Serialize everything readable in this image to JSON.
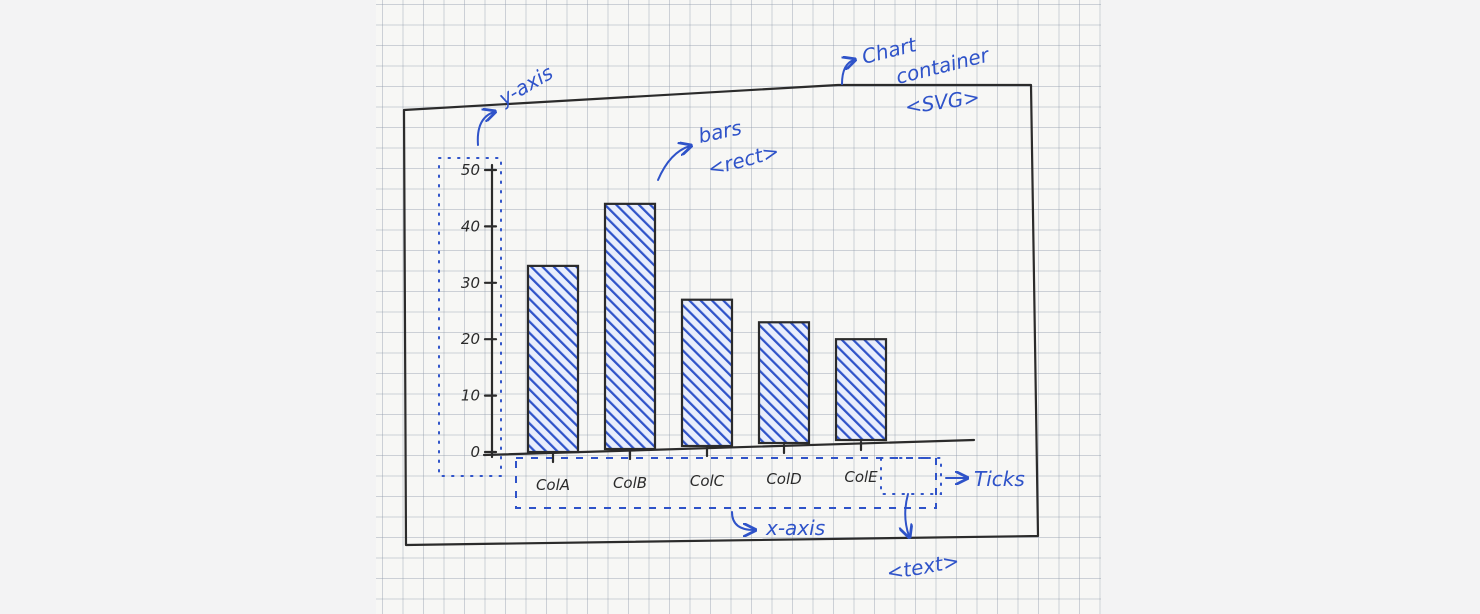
{
  "annotations": {
    "y_axis": "y-axis",
    "chart_container_line1": "Chart",
    "chart_container_line2": "container",
    "chart_container_line3": "<SVG>",
    "bars_line1": "bars",
    "bars_line2": "<rect>",
    "ticks": "Ticks",
    "x_axis": "x-axis",
    "text": "<text>"
  },
  "colors": {
    "ink": "#2b2b2b",
    "annotation_blue": "#2f53c9",
    "bar_fill": "#2f53c9"
  },
  "chart_data": {
    "type": "bar",
    "categories": [
      "ColA",
      "ColB",
      "ColC",
      "ColD",
      "ColE"
    ],
    "values": [
      33,
      44,
      27,
      23,
      20
    ],
    "y_ticks": [
      "0",
      "10",
      "20",
      "30",
      "40",
      "50"
    ],
    "ylim": [
      0,
      50
    ],
    "title": "",
    "xlabel": "",
    "ylabel": ""
  }
}
